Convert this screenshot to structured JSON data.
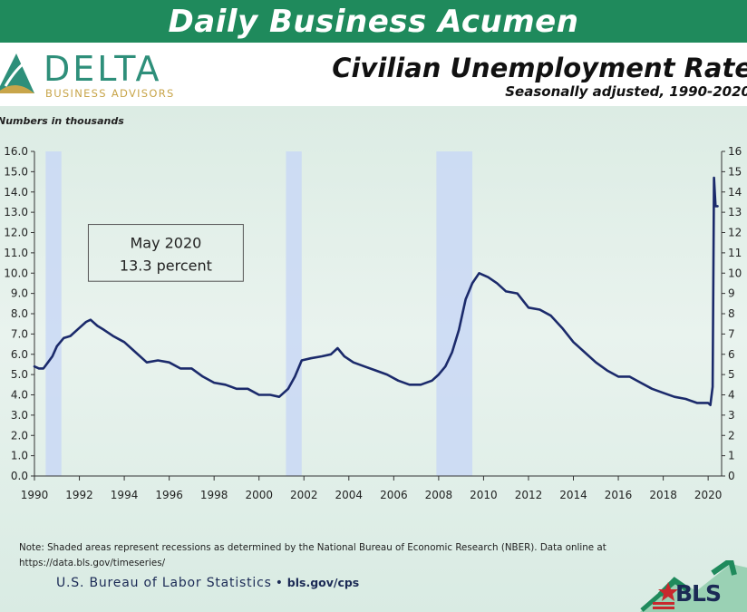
{
  "banner": {
    "title": "Daily Business Acumen"
  },
  "logo": {
    "word": "DELTA",
    "sub": "BUSINESS ADVISORS"
  },
  "footer": {
    "note": "Note: Shaded areas represent recessions as determined by the National Bureau of Economic Research (NBER).  Data online at https://data.bls.gov/timeseries/",
    "agency": "U.S. Bureau of Labor Statistics",
    "url": "bls.gov/cps",
    "bls_logo": "BLS"
  },
  "colors": {
    "banner": "#1f8a5c",
    "line": "#1b2a6b",
    "recession": "#c9d8f5",
    "brand_teal": "#2e8f7a",
    "brand_gold": "#c8a54a"
  },
  "chart_data": {
    "type": "line",
    "title": "Civilian Unemployment Rate",
    "subtitle": "Seasonally adjusted, 1990-2020",
    "units_label": "Numbers in thousands",
    "ylim": [
      0,
      16
    ],
    "xlim": [
      1990,
      2020.6
    ],
    "y_ticks": [
      "0.0",
      "1.0",
      "2.0",
      "3.0",
      "4.0",
      "5.0",
      "6.0",
      "7.0",
      "8.0",
      "9.0",
      "10.0",
      "11.0",
      "12.0",
      "13.0",
      "14.0",
      "15.0",
      "16.0"
    ],
    "right_ticks": [
      "0",
      "1",
      "2",
      "3",
      "4",
      "5",
      "6",
      "7",
      "8",
      "9",
      "10",
      "11",
      "12",
      "13",
      "14",
      "15",
      "16"
    ],
    "x_ticks": [
      "1990",
      "1992",
      "1994",
      "1996",
      "1998",
      "2000",
      "2002",
      "2004",
      "2006",
      "2008",
      "2010",
      "2012",
      "2014",
      "2016",
      "2018",
      "2020"
    ],
    "recessions": [
      [
        1990.5,
        1991.2
      ],
      [
        2001.2,
        2001.9
      ],
      [
        2007.9,
        2009.5
      ]
    ],
    "annotation": {
      "lines": [
        "May 2020",
        "13.3 percent"
      ]
    },
    "series": [
      {
        "x": [
          1990.0,
          1990.2,
          1990.4,
          1990.6,
          1990.8,
          1991.0,
          1991.3,
          1991.6,
          1992.0,
          1992.3,
          1992.5,
          1992.8,
          1993.1,
          1993.5,
          1994.0,
          1994.5,
          1995.0,
          1995.5,
          1996.0,
          1996.5,
          1997.0,
          1997.5,
          1998.0,
          1998.5,
          1999.0,
          1999.5,
          2000.0,
          2000.5,
          2000.9,
          2001.3,
          2001.6,
          2001.9,
          2002.3,
          2002.8,
          2003.2,
          2003.5,
          2003.8,
          2004.2,
          2004.7,
          2005.2,
          2005.7,
          2006.2,
          2006.7,
          2007.2,
          2007.7,
          2008.0,
          2008.3,
          2008.6,
          2008.9,
          2009.2,
          2009.5,
          2009.8,
          2010.2,
          2010.6,
          2011.0,
          2011.5,
          2012.0,
          2012.5,
          2013.0,
          2013.5,
          2014.0,
          2014.5,
          2015.0,
          2015.5,
          2016.0,
          2016.5,
          2017.0,
          2017.5,
          2018.0,
          2018.5,
          2019.0,
          2019.5,
          2020.0,
          2020.1,
          2020.2,
          2020.26,
          2020.33,
          2020.42
        ],
        "y": [
          5.4,
          5.3,
          5.3,
          5.6,
          5.9,
          6.4,
          6.8,
          6.9,
          7.3,
          7.6,
          7.7,
          7.4,
          7.2,
          6.9,
          6.6,
          6.1,
          5.6,
          5.7,
          5.6,
          5.3,
          5.3,
          4.9,
          4.6,
          4.5,
          4.3,
          4.3,
          4.0,
          4.0,
          3.9,
          4.3,
          4.9,
          5.7,
          5.8,
          5.9,
          6.0,
          6.3,
          5.9,
          5.6,
          5.4,
          5.2,
          5.0,
          4.7,
          4.5,
          4.5,
          4.7,
          5.0,
          5.4,
          6.1,
          7.2,
          8.7,
          9.5,
          10.0,
          9.8,
          9.5,
          9.1,
          9.0,
          8.3,
          8.2,
          7.9,
          7.3,
          6.6,
          6.1,
          5.6,
          5.2,
          4.9,
          4.9,
          4.6,
          4.3,
          4.1,
          3.9,
          3.8,
          3.6,
          3.6,
          3.5,
          4.4,
          14.7,
          13.3,
          13.3
        ]
      }
    ]
  }
}
